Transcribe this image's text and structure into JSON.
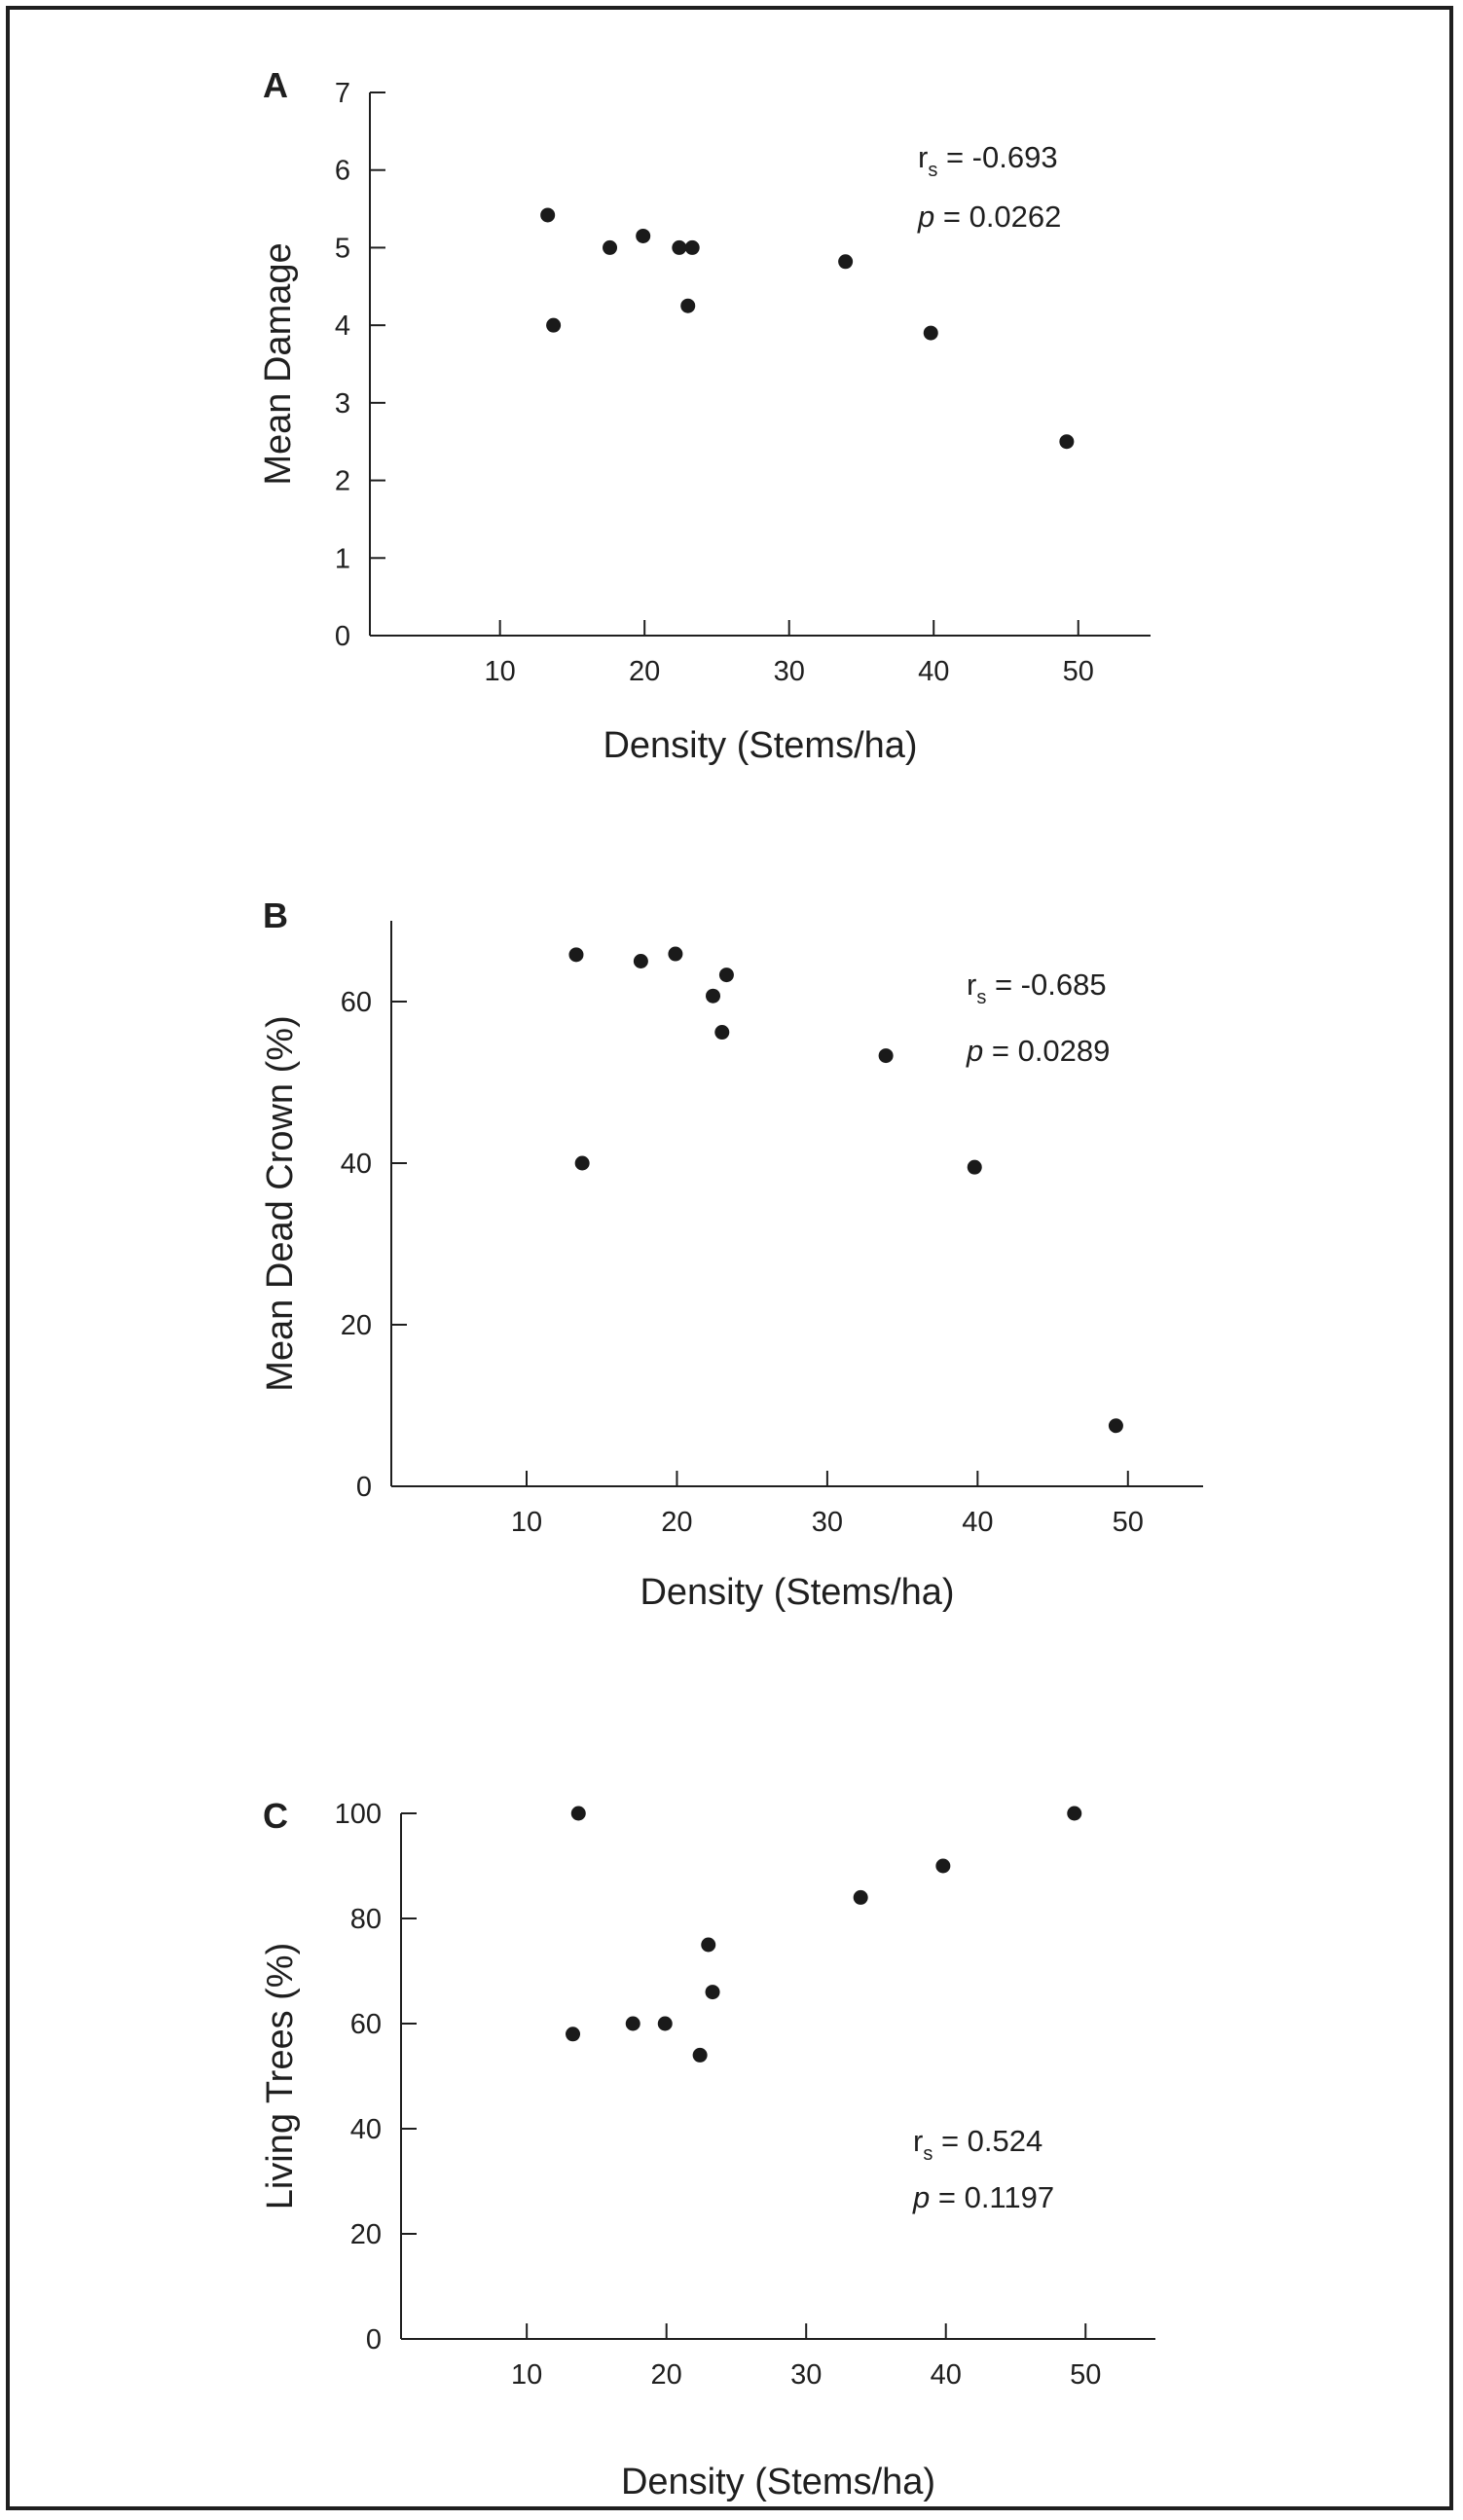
{
  "chart_data": [
    {
      "type": "scatter",
      "panel_label": "A",
      "xlabel": "Density (Stems/ha)",
      "ylabel": "Mean Damage",
      "xlim": [
        1,
        55
      ],
      "ylim": [
        0,
        7
      ],
      "xticks": [
        10,
        20,
        30,
        40,
        50
      ],
      "yticks": [
        0,
        1,
        2,
        3,
        4,
        5,
        6,
        7
      ],
      "points": [
        {
          "x": 13.3,
          "y": 5.42
        },
        {
          "x": 13.7,
          "y": 4.0
        },
        {
          "x": 17.6,
          "y": 5.0
        },
        {
          "x": 19.9,
          "y": 5.15
        },
        {
          "x": 22.4,
          "y": 5.0
        },
        {
          "x": 23.0,
          "y": 4.25
        },
        {
          "x": 23.3,
          "y": 5.0
        },
        {
          "x": 33.9,
          "y": 4.82
        },
        {
          "x": 39.8,
          "y": 3.9
        },
        {
          "x": 49.2,
          "y": 2.5
        }
      ],
      "stat_r_prefix": "r",
      "stat_r_sub": "s",
      "stat_r_value": " = -0.693",
      "stat_p_prefix": "p",
      "stat_p_value": " = 0.0262",
      "stats_position": "top-right",
      "grid": false
    },
    {
      "type": "scatter",
      "panel_label": "B",
      "xlabel": "Density (Stems/ha)",
      "ylabel": "Mean Dead Crown (%)",
      "xlim": [
        1,
        55
      ],
      "ylim": [
        0,
        70
      ],
      "xticks": [
        10,
        20,
        30,
        40,
        50
      ],
      "yticks": [
        0,
        20,
        40,
        60
      ],
      "points": [
        {
          "x": 13.3,
          "y": 65.8
        },
        {
          "x": 13.7,
          "y": 40.0
        },
        {
          "x": 17.6,
          "y": 65.0
        },
        {
          "x": 19.9,
          "y": 65.9
        },
        {
          "x": 22.4,
          "y": 60.7
        },
        {
          "x": 23.0,
          "y": 56.2
        },
        {
          "x": 23.3,
          "y": 63.3
        },
        {
          "x": 33.9,
          "y": 53.3
        },
        {
          "x": 39.8,
          "y": 39.5
        },
        {
          "x": 49.2,
          "y": 7.5
        }
      ],
      "stat_r_prefix": "r",
      "stat_r_sub": "s",
      "stat_r_value": " = -0.685",
      "stat_p_prefix": "p",
      "stat_p_value": " = 0.0289",
      "stats_position": "top-right",
      "grid": false
    },
    {
      "type": "scatter",
      "panel_label": "C",
      "xlabel": "Density (Stems/ha)",
      "ylabel": "Living Trees (%)",
      "xlim": [
        1,
        55
      ],
      "ylim": [
        0,
        100
      ],
      "xticks": [
        10,
        20,
        30,
        40,
        50
      ],
      "yticks": [
        0,
        20,
        40,
        60,
        80,
        100
      ],
      "points": [
        {
          "x": 13.3,
          "y": 58
        },
        {
          "x": 13.7,
          "y": 100
        },
        {
          "x": 17.6,
          "y": 60
        },
        {
          "x": 19.9,
          "y": 60
        },
        {
          "x": 22.4,
          "y": 54
        },
        {
          "x": 23.0,
          "y": 75
        },
        {
          "x": 23.3,
          "y": 66
        },
        {
          "x": 33.9,
          "y": 84
        },
        {
          "x": 39.8,
          "y": 90
        },
        {
          "x": 49.2,
          "y": 100
        }
      ],
      "stat_r_prefix": "r",
      "stat_r_sub": "s",
      "stat_r_value": " = 0.524",
      "stat_p_prefix": "p",
      "stat_p_value": " = 0.1197",
      "stats_position": "bottom-right",
      "grid": false
    }
  ],
  "colors": {
    "ink": "#1f1f1f",
    "point": "#1a1a1a",
    "background": "#ffffff"
  }
}
